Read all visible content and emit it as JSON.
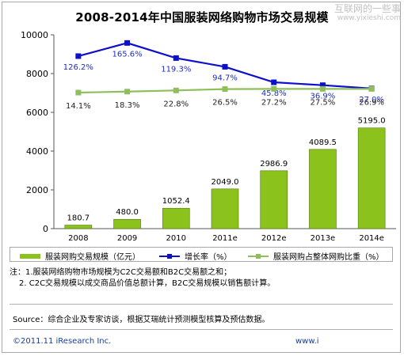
{
  "watermark": {
    "line1": "互联网的一些事",
    "line2": "www.yixieshi.com"
  },
  "title": "2008-2014年中国服装网络购物市场交易规模",
  "chart_data": {
    "type": "bar",
    "categories": [
      "2008",
      "2009",
      "2010",
      "2011e",
      "2012e",
      "2013e",
      "2014e"
    ],
    "ylim": [
      0,
      10000
    ],
    "yticks": [
      "0",
      "2000",
      "4000",
      "6000",
      "8000",
      "10000"
    ],
    "grid": false,
    "series": [
      {
        "name": "服装网购交易规模（亿元）",
        "kind": "bar",
        "color": "#8bc21b",
        "values": [
          180.7,
          480.0,
          1052.4,
          2049.0,
          2986.9,
          4089.5,
          5195.0
        ],
        "labels": [
          "180.7",
          "480.0",
          "1052.4",
          "2049.0",
          "2986.9",
          "4089.5",
          "5195.0"
        ]
      },
      {
        "name": "增长率（%）",
        "kind": "line",
        "color": "#0c10c8",
        "values": [
          126.2,
          165.6,
          119.3,
          94.7,
          45.8,
          36.9,
          27.0
        ],
        "labels": [
          "126.2%",
          "165.6%",
          "119.3%",
          "94.7%",
          "45.8%",
          "36.9%",
          "27.0%"
        ],
        "plot_positions": [
          8900,
          9580,
          8800,
          8350,
          7550,
          7400,
          7230
        ]
      },
      {
        "name": "服装网购占整体网购比重（%）",
        "kind": "line",
        "color": "#8fbf5a",
        "values": [
          14.1,
          18.3,
          22.8,
          26.5,
          27.2,
          27.5,
          26.9
        ],
        "labels": [
          "14.1%",
          "18.3%",
          "22.8%",
          "26.5%",
          "27.2%",
          "27.5%",
          "26.9%"
        ],
        "plot_positions": [
          7020,
          7070,
          7130,
          7200,
          7210,
          7210,
          7210
        ]
      }
    ],
    "legend": "bottom"
  },
  "notes": {
    "line1": "注：1.服装网络购物市场规模为C2C交易额和B2C交易额之和；",
    "line2": "2. C2C交易规模以成交商品价值总额计算，B2C交易规模以销售额计算。"
  },
  "source": "Source：综合企业及专家访谈，根据艾瑞统计预测模型核算及预估数据。",
  "footer": {
    "copyright": "©2011.11 iResearch Inc.",
    "website": "www.i"
  }
}
